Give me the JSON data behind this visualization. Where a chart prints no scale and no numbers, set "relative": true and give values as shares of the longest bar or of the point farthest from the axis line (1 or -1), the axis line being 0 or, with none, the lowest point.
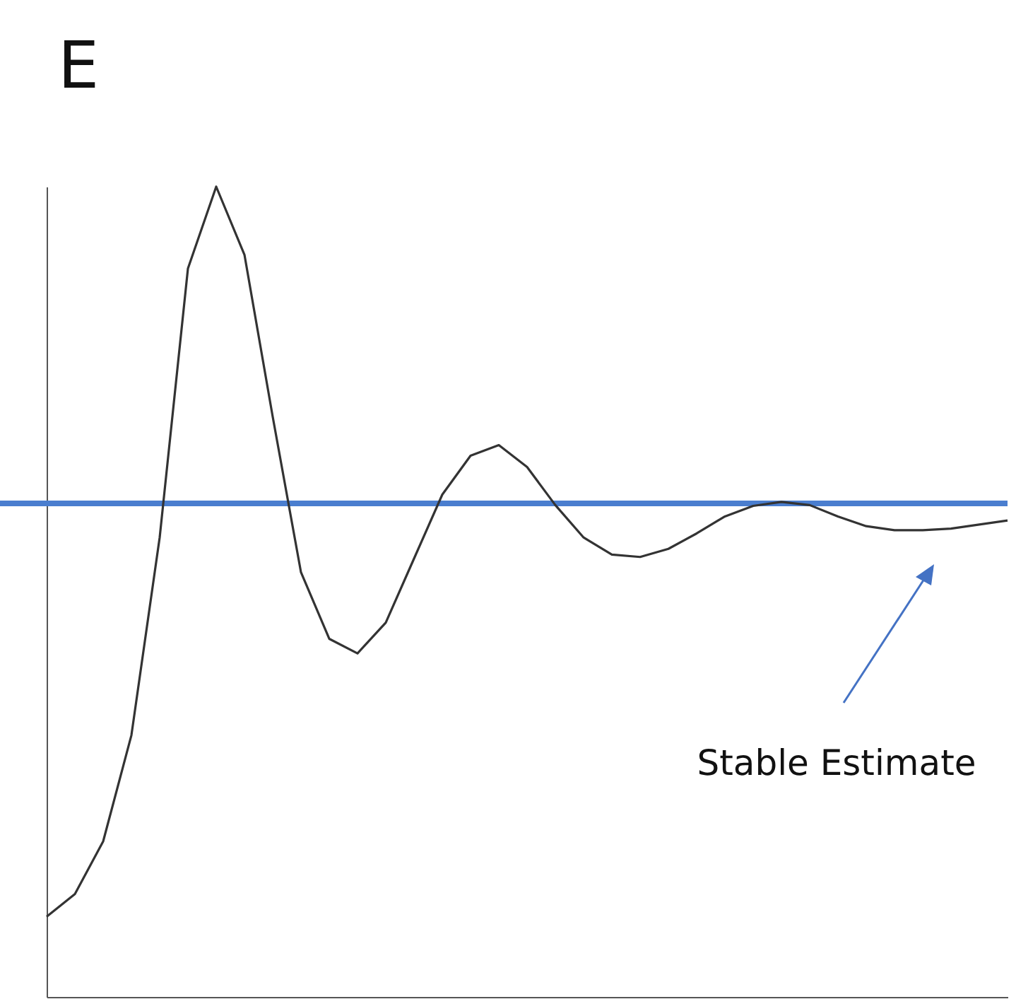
{
  "chart_data": {
    "type": "line",
    "title": "E",
    "relative": true,
    "categories": [
      null,
      null,
      null,
      null,
      null,
      null,
      null,
      null,
      null,
      null,
      null,
      null,
      null,
      null,
      null,
      null,
      null,
      null,
      null,
      null,
      null,
      null,
      null,
      null,
      null,
      null,
      null,
      null,
      null,
      null,
      null,
      null,
      null,
      null,
      null
    ],
    "series": [
      {
        "color": "#333333",
        "values": [
          0.099,
          0.127,
          0.192,
          0.323,
          0.567,
          0.899,
          1,
          0.916,
          0.716,
          0.524,
          0.442,
          0.424,
          0.462,
          0.541,
          0.62,
          0.668,
          0.681,
          0.654,
          0.607,
          0.567,
          0.546,
          0.543,
          0.553,
          0.572,
          0.593,
          0.606,
          0.611,
          0.607,
          0.593,
          0.581,
          0.576,
          0.576,
          0.578,
          0.583,
          0.588
        ]
      }
    ],
    "ref_lines": [
      {
        "axis": "y",
        "value": 0.609,
        "color": "#4a7ecf"
      }
    ],
    "annotations": [
      "Stable Estimate"
    ],
    "marker": "none",
    "line_style": "solid"
  }
}
